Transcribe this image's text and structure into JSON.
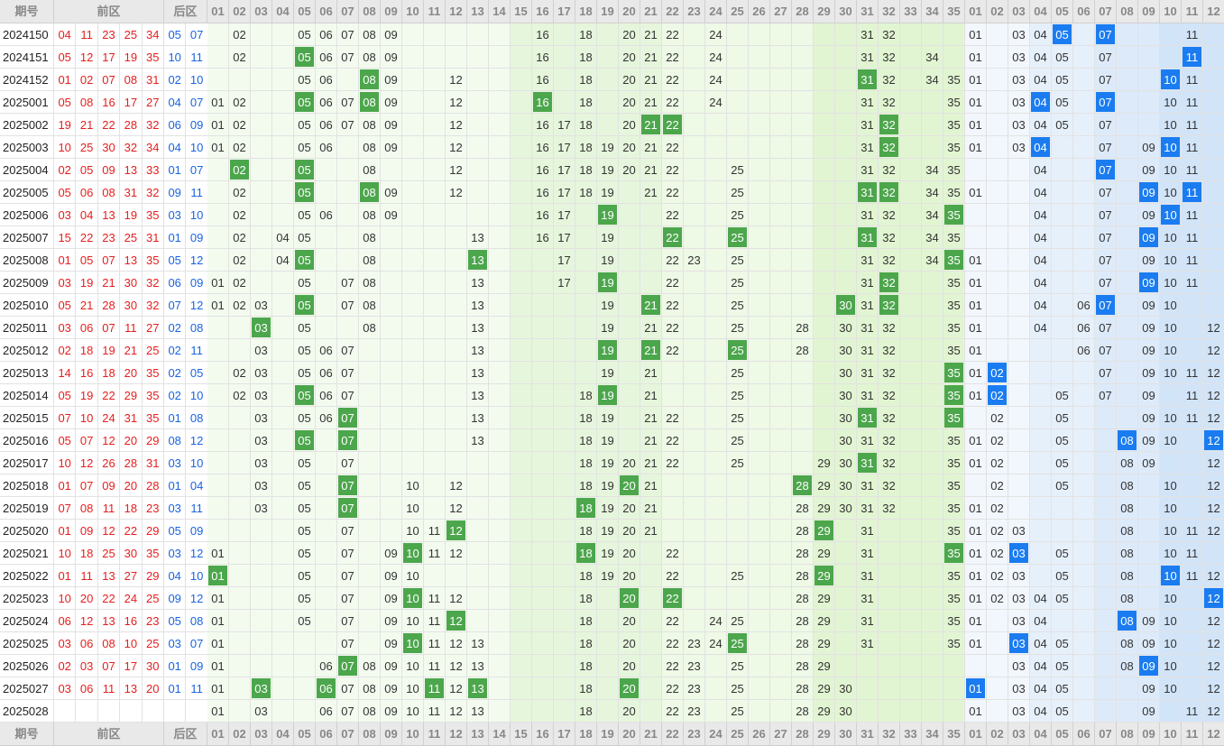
{
  "header": {
    "period_label": "期号",
    "front_label": "前区",
    "back_label": "后区",
    "front_cols": [
      "01",
      "02",
      "03",
      "04",
      "05",
      "06",
      "07",
      "08",
      "09",
      "10",
      "11",
      "12",
      "13",
      "14",
      "15",
      "16",
      "17",
      "18",
      "19",
      "20",
      "21",
      "22",
      "23",
      "24",
      "25",
      "26",
      "27",
      "28",
      "29",
      "30",
      "31",
      "32",
      "33",
      "34",
      "35"
    ],
    "back_cols": [
      "01",
      "02",
      "03",
      "04",
      "05",
      "06",
      "07",
      "08",
      "09",
      "10",
      "11",
      "12"
    ]
  },
  "colors": {
    "front_number": "#e61e1e",
    "back_number": "#1a64e0",
    "hit_front": "#4ca64c",
    "hit_back": "#1a7cf0"
  },
  "rows": [
    {
      "p": "2024150",
      "f": [
        "04",
        "11",
        "23",
        "25",
        "34"
      ],
      "b": [
        "05",
        "07"
      ],
      "m": [
        2,
        5,
        6,
        7,
        8,
        9,
        16,
        18,
        20,
        21,
        22,
        24,
        31,
        32
      ],
      "mb": [
        1,
        3,
        4,
        5,
        7,
        11
      ],
      "hf": [],
      "hb": [
        5,
        7
      ]
    },
    {
      "p": "2024151",
      "f": [
        "05",
        "12",
        "17",
        "19",
        "35"
      ],
      "b": [
        "10",
        "11"
      ],
      "m": [
        2,
        5,
        6,
        7,
        8,
        9,
        16,
        18,
        20,
        21,
        22,
        24,
        31,
        32,
        34
      ],
      "mb": [
        1,
        3,
        4,
        5,
        7,
        11
      ],
      "hf": [
        5
      ],
      "hb": [
        11
      ]
    },
    {
      "p": "2024152",
      "f": [
        "01",
        "02",
        "07",
        "08",
        "31"
      ],
      "b": [
        "02",
        "10"
      ],
      "m": [
        5,
        6,
        8,
        9,
        12,
        16,
        18,
        20,
        21,
        22,
        24,
        31,
        32,
        34,
        35
      ],
      "mb": [
        1,
        3,
        4,
        5,
        7,
        10,
        11
      ],
      "hf": [
        8,
        31
      ],
      "hb": [
        10
      ]
    },
    {
      "p": "2025001",
      "f": [
        "05",
        "08",
        "16",
        "17",
        "27"
      ],
      "b": [
        "04",
        "07"
      ],
      "m": [
        1,
        2,
        5,
        6,
        7,
        8,
        9,
        12,
        16,
        18,
        20,
        21,
        22,
        24,
        31,
        32,
        35
      ],
      "mb": [
        1,
        3,
        4,
        5,
        7,
        10,
        11
      ],
      "hf": [
        5,
        8,
        16
      ],
      "hb": [
        4,
        7
      ]
    },
    {
      "p": "2025002",
      "f": [
        "19",
        "21",
        "22",
        "28",
        "32"
      ],
      "b": [
        "06",
        "09"
      ],
      "m": [
        1,
        2,
        5,
        6,
        7,
        8,
        9,
        12,
        16,
        17,
        18,
        20,
        21,
        22,
        31,
        32,
        35
      ],
      "mb": [
        1,
        3,
        4,
        5,
        7,
        10,
        11
      ],
      "hf": [
        21,
        22,
        32
      ],
      "hb": []
    },
    {
      "p": "2025003",
      "f": [
        "10",
        "25",
        "30",
        "32",
        "34"
      ],
      "b": [
        "04",
        "10"
      ],
      "m": [
        1,
        2,
        5,
        6,
        8,
        9,
        12,
        16,
        17,
        18,
        19,
        20,
        21,
        22,
        31,
        32,
        35
      ],
      "mb": [
        1,
        3,
        4,
        7,
        9,
        10,
        11
      ],
      "hf": [
        32
      ],
      "hb": [
        4,
        10
      ]
    },
    {
      "p": "2025004",
      "f": [
        "02",
        "05",
        "09",
        "13",
        "33"
      ],
      "b": [
        "01",
        "07"
      ],
      "m": [
        2,
        5,
        8,
        12,
        16,
        17,
        18,
        19,
        20,
        21,
        22,
        25,
        31,
        32,
        34,
        35
      ],
      "mb": [
        4,
        7,
        9,
        10,
        11
      ],
      "hf": [
        2,
        5
      ],
      "hb": [
        7
      ]
    },
    {
      "p": "2025005",
      "f": [
        "05",
        "06",
        "08",
        "31",
        "32"
      ],
      "b": [
        "09",
        "11"
      ],
      "m": [
        2,
        5,
        8,
        9,
        12,
        16,
        17,
        18,
        19,
        21,
        22,
        25,
        31,
        32,
        34,
        35
      ],
      "mb": [
        1,
        4,
        7,
        9,
        10,
        11
      ],
      "hf": [
        5,
        8,
        31,
        32
      ],
      "hb": [
        9,
        11
      ]
    },
    {
      "p": "2025006",
      "f": [
        "03",
        "04",
        "13",
        "19",
        "35"
      ],
      "b": [
        "03",
        "10"
      ],
      "m": [
        2,
        5,
        6,
        8,
        9,
        16,
        17,
        19,
        22,
        25,
        31,
        32,
        34,
        35
      ],
      "mb": [
        4,
        7,
        9,
        10,
        11
      ],
      "hf": [
        19,
        35
      ],
      "hb": [
        10
      ]
    },
    {
      "p": "2025007",
      "f": [
        "15",
        "22",
        "23",
        "25",
        "31"
      ],
      "b": [
        "01",
        "09"
      ],
      "m": [
        2,
        4,
        5,
        8,
        13,
        16,
        17,
        19,
        22,
        25,
        31,
        32,
        34,
        35
      ],
      "mb": [
        4,
        7,
        9,
        10,
        11
      ],
      "hf": [
        22,
        25,
        31
      ],
      "hb": [
        9
      ]
    },
    {
      "p": "2025008",
      "f": [
        "01",
        "05",
        "07",
        "13",
        "35"
      ],
      "b": [
        "05",
        "12"
      ],
      "m": [
        2,
        4,
        5,
        8,
        13,
        17,
        19,
        22,
        23,
        25,
        31,
        32,
        34,
        35
      ],
      "mb": [
        1,
        4,
        7,
        9,
        10,
        11
      ],
      "hf": [
        5,
        13,
        35
      ],
      "hb": []
    },
    {
      "p": "2025009",
      "f": [
        "03",
        "19",
        "21",
        "30",
        "32"
      ],
      "b": [
        "06",
        "09"
      ],
      "m": [
        1,
        2,
        5,
        7,
        8,
        13,
        17,
        19,
        22,
        25,
        31,
        32,
        35
      ],
      "mb": [
        1,
        4,
        7,
        9,
        10,
        11
      ],
      "hf": [
        19,
        32
      ],
      "hb": [
        9
      ]
    },
    {
      "p": "2025010",
      "f": [
        "05",
        "21",
        "28",
        "30",
        "32"
      ],
      "b": [
        "07",
        "12"
      ],
      "m": [
        1,
        2,
        3,
        5,
        7,
        8,
        13,
        19,
        21,
        22,
        25,
        30,
        31,
        32,
        35
      ],
      "mb": [
        1,
        4,
        6,
        7,
        9,
        10
      ],
      "hf": [
        5,
        21,
        30,
        32
      ],
      "hb": [
        7
      ]
    },
    {
      "p": "2025011",
      "f": [
        "03",
        "06",
        "07",
        "11",
        "27"
      ],
      "b": [
        "02",
        "08"
      ],
      "m": [
        3,
        5,
        8,
        13,
        19,
        21,
        22,
        25,
        28,
        30,
        31,
        32,
        35
      ],
      "mb": [
        1,
        4,
        6,
        7,
        9,
        10,
        12
      ],
      "hf": [
        3
      ],
      "hb": []
    },
    {
      "p": "2025012",
      "f": [
        "02",
        "18",
        "19",
        "21",
        "25"
      ],
      "b": [
        "02",
        "11"
      ],
      "m": [
        3,
        5,
        6,
        7,
        13,
        19,
        21,
        22,
        25,
        28,
        30,
        31,
        32,
        35
      ],
      "mb": [
        1,
        6,
        7,
        9,
        10,
        12
      ],
      "hf": [
        19,
        21,
        25
      ],
      "hb": []
    },
    {
      "p": "2025013",
      "f": [
        "14",
        "16",
        "18",
        "20",
        "35"
      ],
      "b": [
        "02",
        "05"
      ],
      "m": [
        2,
        3,
        5,
        6,
        7,
        13,
        19,
        21,
        25,
        30,
        31,
        32,
        35
      ],
      "mb": [
        1,
        2,
        7,
        9,
        10,
        11,
        12
      ],
      "hf": [
        35
      ],
      "hb": [
        2
      ]
    },
    {
      "p": "2025014",
      "f": [
        "05",
        "19",
        "22",
        "29",
        "35"
      ],
      "b": [
        "02",
        "10"
      ],
      "m": [
        2,
        3,
        5,
        6,
        7,
        13,
        18,
        19,
        21,
        25,
        30,
        31,
        32,
        35
      ],
      "mb": [
        1,
        2,
        5,
        7,
        9,
        11,
        12
      ],
      "hf": [
        5,
        19,
        35
      ],
      "hb": [
        2
      ]
    },
    {
      "p": "2025015",
      "f": [
        "07",
        "10",
        "24",
        "31",
        "35"
      ],
      "b": [
        "01",
        "08"
      ],
      "m": [
        3,
        5,
        6,
        7,
        13,
        18,
        19,
        21,
        22,
        25,
        30,
        31,
        32,
        35
      ],
      "mb": [
        2,
        5,
        9,
        10,
        11,
        12
      ],
      "hf": [
        7,
        31,
        35
      ],
      "hb": []
    },
    {
      "p": "2025016",
      "f": [
        "05",
        "07",
        "12",
        "20",
        "29"
      ],
      "b": [
        "08",
        "12"
      ],
      "m": [
        3,
        5,
        7,
        13,
        18,
        19,
        21,
        22,
        25,
        30,
        31,
        32,
        35
      ],
      "mb": [
        1,
        2,
        5,
        8,
        9,
        10,
        12
      ],
      "hf": [
        5,
        7
      ],
      "hb": [
        8,
        12
      ]
    },
    {
      "p": "2025017",
      "f": [
        "10",
        "12",
        "26",
        "28",
        "31"
      ],
      "b": [
        "03",
        "10"
      ],
      "m": [
        3,
        5,
        7,
        18,
        19,
        20,
        21,
        22,
        25,
        29,
        30,
        31,
        32,
        35
      ],
      "mb": [
        1,
        2,
        5,
        8,
        9,
        12
      ],
      "hf": [
        31
      ],
      "hb": []
    },
    {
      "p": "2025018",
      "f": [
        "01",
        "07",
        "09",
        "20",
        "28"
      ],
      "b": [
        "01",
        "04"
      ],
      "m": [
        3,
        5,
        7,
        10,
        12,
        18,
        19,
        20,
        21,
        28,
        29,
        30,
        31,
        32,
        35
      ],
      "mb": [
        2,
        5,
        8,
        10,
        12
      ],
      "hf": [
        7,
        20,
        28
      ],
      "hb": []
    },
    {
      "p": "2025019",
      "f": [
        "07",
        "08",
        "11",
        "18",
        "23"
      ],
      "b": [
        "03",
        "11"
      ],
      "m": [
        3,
        5,
        7,
        10,
        12,
        18,
        19,
        20,
        21,
        28,
        29,
        30,
        31,
        32,
        35
      ],
      "mb": [
        1,
        2,
        8,
        10,
        12
      ],
      "hf": [
        7,
        18
      ],
      "hb": []
    },
    {
      "p": "2025020",
      "f": [
        "01",
        "09",
        "12",
        "22",
        "29"
      ],
      "b": [
        "05",
        "09"
      ],
      "m": [
        5,
        7,
        10,
        11,
        12,
        18,
        19,
        20,
        21,
        28,
        29,
        31,
        35
      ],
      "mb": [
        1,
        2,
        3,
        8,
        10,
        11,
        12
      ],
      "hf": [
        12,
        29
      ],
      "hb": []
    },
    {
      "p": "2025021",
      "f": [
        "10",
        "18",
        "25",
        "30",
        "35"
      ],
      "b": [
        "03",
        "12"
      ],
      "m": [
        1,
        5,
        7,
        9,
        10,
        11,
        12,
        18,
        19,
        20,
        22,
        28,
        29,
        31,
        35
      ],
      "mb": [
        1,
        2,
        3,
        5,
        8,
        10,
        11
      ],
      "hf": [
        10,
        18,
        35
      ],
      "hb": [
        3
      ]
    },
    {
      "p": "2025022",
      "f": [
        "01",
        "11",
        "13",
        "27",
        "29"
      ],
      "b": [
        "04",
        "10"
      ],
      "m": [
        1,
        5,
        7,
        9,
        10,
        18,
        19,
        20,
        22,
        25,
        28,
        29,
        31,
        35
      ],
      "mb": [
        1,
        2,
        3,
        5,
        8,
        10,
        11,
        12
      ],
      "hf": [
        1,
        29
      ],
      "hb": [
        10
      ]
    },
    {
      "p": "2025023",
      "f": [
        "10",
        "20",
        "22",
        "24",
        "25"
      ],
      "b": [
        "09",
        "12"
      ],
      "m": [
        1,
        5,
        7,
        9,
        10,
        11,
        12,
        18,
        20,
        22,
        28,
        29,
        31,
        35
      ],
      "mb": [
        1,
        2,
        3,
        4,
        5,
        8,
        10,
        12
      ],
      "hf": [
        10,
        20,
        22
      ],
      "hb": [
        12
      ]
    },
    {
      "p": "2025024",
      "f": [
        "06",
        "12",
        "13",
        "16",
        "23"
      ],
      "b": [
        "05",
        "08"
      ],
      "m": [
        1,
        5,
        7,
        9,
        10,
        11,
        12,
        18,
        20,
        22,
        24,
        25,
        28,
        29,
        31,
        35
      ],
      "mb": [
        1,
        3,
        4,
        8,
        9,
        10,
        12
      ],
      "hf": [
        12
      ],
      "hb": [
        8
      ]
    },
    {
      "p": "2025025",
      "f": [
        "03",
        "06",
        "08",
        "10",
        "25"
      ],
      "b": [
        "03",
        "07"
      ],
      "m": [
        1,
        7,
        9,
        10,
        11,
        12,
        13,
        18,
        20,
        22,
        23,
        24,
        25,
        28,
        29,
        31,
        35
      ],
      "mb": [
        1,
        3,
        4,
        5,
        8,
        9,
        10,
        12
      ],
      "hf": [
        10,
        25
      ],
      "hb": [
        3
      ]
    },
    {
      "p": "2025026",
      "f": [
        "02",
        "03",
        "07",
        "17",
        "30"
      ],
      "b": [
        "01",
        "09"
      ],
      "m": [
        1,
        6,
        7,
        8,
        9,
        10,
        11,
        12,
        13,
        18,
        20,
        22,
        23,
        25,
        28,
        29
      ],
      "mb": [
        3,
        4,
        5,
        8,
        9,
        10,
        12
      ],
      "hf": [
        7
      ],
      "hb": [
        9
      ]
    },
    {
      "p": "2025027",
      "f": [
        "03",
        "06",
        "11",
        "13",
        "20"
      ],
      "b": [
        "01",
        "11"
      ],
      "m": [
        1,
        3,
        6,
        7,
        8,
        9,
        10,
        11,
        12,
        13,
        18,
        20,
        22,
        23,
        25,
        28,
        29,
        30
      ],
      "mb": [
        1,
        3,
        4,
        5,
        9,
        10,
        12
      ],
      "hf": [
        3,
        6,
        11,
        13,
        20
      ],
      "hb": [
        1
      ]
    },
    {
      "p": "2025028",
      "f": [],
      "b": [],
      "m": [
        1,
        3,
        6,
        7,
        8,
        9,
        10,
        11,
        12,
        13,
        18,
        20,
        22,
        23,
        25,
        28,
        29,
        30
      ],
      "mb": [
        1,
        3,
        4,
        5,
        9,
        11,
        12
      ],
      "hf": [],
      "hb": []
    }
  ]
}
